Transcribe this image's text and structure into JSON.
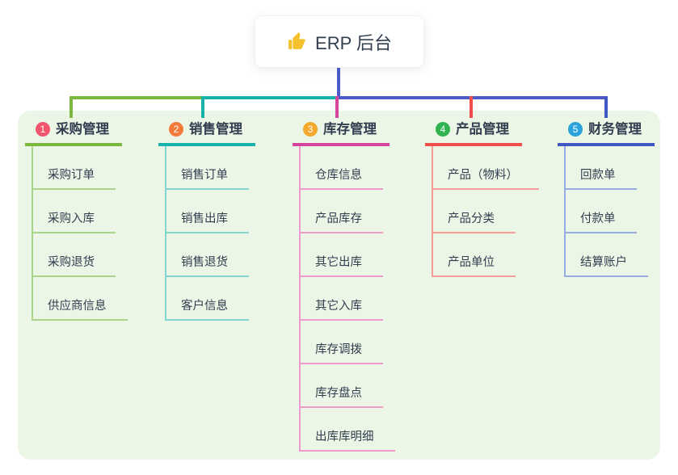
{
  "root": {
    "title": "ERP 后台",
    "icon": "thumbs-up-icon"
  },
  "colors": {
    "canvas_bg": "#ffffff",
    "panel_bg": "#ecf6e6",
    "root_connector": "#4c5bc9",
    "text_dark": "#313e50",
    "thumb_icon": "#f6c02d"
  },
  "branches": [
    {
      "badge": "1",
      "label": "采购管理",
      "badge_color": "#f1556e",
      "line_color": "#7cb840",
      "child_line_color": "#a9d489",
      "children": [
        "采购订单",
        "采购入库",
        "采购退货",
        "供应商信息"
      ]
    },
    {
      "badge": "2",
      "label": "销售管理",
      "badge_color": "#f57b3c",
      "line_color": "#17b3ab",
      "child_line_color": "#84d6d0",
      "children": [
        "销售订单",
        "销售出库",
        "销售退货",
        "客户信息"
      ]
    },
    {
      "badge": "3",
      "label": "库存管理",
      "badge_color": "#f5a82b",
      "line_color": "#d6459c",
      "child_line_color": "#ef9aca",
      "children": [
        "仓库信息",
        "产品库存",
        "其它出库",
        "其它入库",
        "库存调拨",
        "库存盘点",
        "出库库明细"
      ]
    },
    {
      "badge": "4",
      "label": "产品管理",
      "badge_color": "#2fb44f",
      "line_color": "#ef4e4c",
      "child_line_color": "#f59e98",
      "children": [
        "产品（物料）",
        "产品分类",
        "产品单位"
      ]
    },
    {
      "badge": "5",
      "label": "财务管理",
      "badge_color": "#2ba3dc",
      "line_color": "#4058c4",
      "child_line_color": "#97ace2",
      "children": [
        "回款单",
        "付款单",
        "结算账户"
      ]
    }
  ]
}
